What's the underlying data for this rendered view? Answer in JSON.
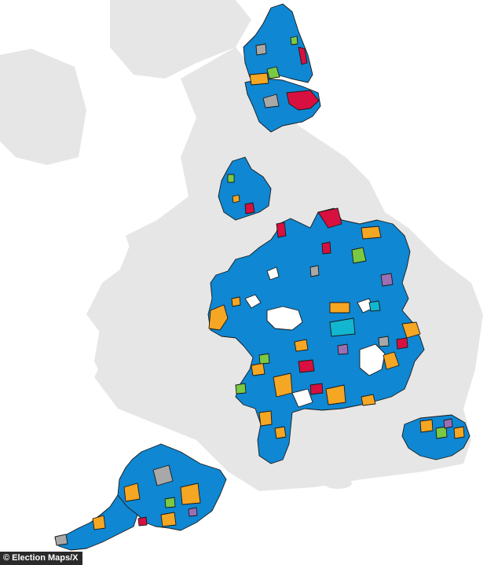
{
  "credit": "© Election Maps/X",
  "colors": {
    "background": "#ffffff",
    "land_context": "#e6e6e6",
    "sea": "#ffffff",
    "conservative": "#0f87d2",
    "reform_uk": "#12b6cf",
    "labour": "#d8103f",
    "liberal_democrat": "#f5a623",
    "green": "#7ac943",
    "independent": "#a8a8a8",
    "residents": "#9b6fb3",
    "boundary": "#1a1a1a"
  },
  "regions": [
    "northumberland-durham",
    "lancashire-west",
    "midlands-east",
    "kent",
    "devon-cornwall"
  ]
}
